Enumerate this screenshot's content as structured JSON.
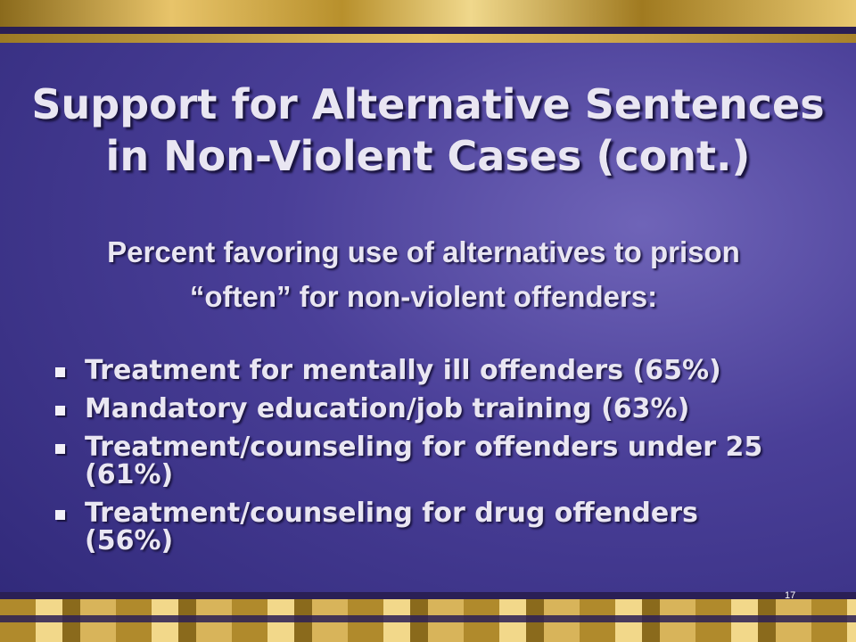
{
  "slide": {
    "title": [
      "Support for Alternative Sentences",
      "in Non-Violent Cases (cont.)"
    ],
    "subtitle": [
      "Percent favoring use of alternatives to prison",
      "“often” for non-violent offenders:"
    ],
    "bullets": [
      "Treatment for mentally ill offenders (65%)",
      "Mandatory education/job training (63%)",
      "Treatment/counseling for offenders under 25 (61%)",
      "Treatment/counseling for drug offenders (56%)"
    ],
    "page_number": "17"
  }
}
